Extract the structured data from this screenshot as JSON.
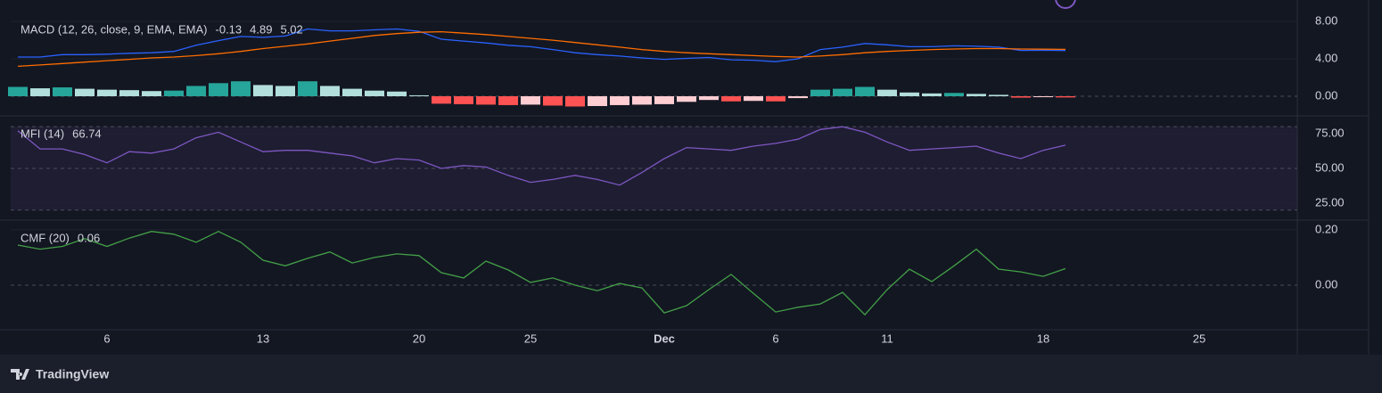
{
  "chart_data": [
    {
      "type": "macd",
      "title": "MACD (12, 26, close, 9, EMA, EMA)",
      "x": [
        2,
        3,
        4,
        5,
        6,
        7,
        8,
        9,
        10,
        11,
        12,
        13,
        14,
        15,
        16,
        17,
        18,
        19,
        20,
        21,
        22,
        23,
        24,
        25,
        26,
        27,
        28,
        29,
        30,
        31,
        32,
        33,
        34,
        35,
        36,
        37,
        38,
        39,
        40,
        41,
        42,
        43,
        44,
        45,
        46,
        47,
        48,
        49
      ],
      "xlim": [
        1.68,
        59.4
      ],
      "ylim": [
        -2.1,
        10.3
      ],
      "yticks": [
        {
          "value": 8,
          "label": "8.00"
        },
        {
          "value": 4,
          "label": "4.00"
        },
        {
          "value": 0,
          "label": "0.00"
        }
      ],
      "dashed_levels": [
        0
      ],
      "series": [
        {
          "style": "histogram",
          "colors": [
            "#26a69a",
            "#b2dfdb",
            "#ffcdd2",
            "#ff5252"
          ],
          "values": [
            1.0,
            0.85,
            0.95,
            0.8,
            0.7,
            0.65,
            0.55,
            0.6,
            1.1,
            1.4,
            1.6,
            1.2,
            1.1,
            1.6,
            1.1,
            0.8,
            0.6,
            0.5,
            0.1,
            -0.8,
            -0.85,
            -0.9,
            -0.95,
            -0.9,
            -1.0,
            -1.1,
            -1.05,
            -0.95,
            -0.9,
            -0.85,
            -0.6,
            -0.4,
            -0.55,
            -0.5,
            -0.55,
            -0.2,
            0.7,
            0.8,
            1.0,
            0.7,
            0.4,
            0.3,
            0.35,
            0.25,
            0.15,
            -0.15,
            -0.1,
            -0.13
          ]
        },
        {
          "style": "line",
          "color": "#2962ff",
          "values": [
            4.2,
            4.2,
            4.45,
            4.45,
            4.5,
            4.6,
            4.65,
            4.8,
            5.45,
            5.95,
            6.4,
            6.3,
            6.45,
            7.2,
            7.0,
            7.0,
            7.1,
            7.2,
            6.95,
            6.1,
            5.9,
            5.7,
            5.45,
            5.3,
            5.0,
            4.65,
            4.45,
            4.3,
            4.1,
            3.95,
            4.05,
            4.15,
            3.9,
            3.85,
            3.7,
            4.0,
            5.0,
            5.25,
            5.65,
            5.5,
            5.3,
            5.3,
            5.4,
            5.35,
            5.25,
            4.9,
            4.93,
            4.89
          ]
        },
        {
          "style": "line",
          "color": "#ff6d00",
          "values": [
            3.2,
            3.35,
            3.5,
            3.65,
            3.8,
            3.95,
            4.1,
            4.2,
            4.35,
            4.55,
            4.8,
            5.1,
            5.35,
            5.6,
            5.9,
            6.2,
            6.5,
            6.7,
            6.85,
            6.9,
            6.75,
            6.6,
            6.4,
            6.2,
            6.0,
            5.75,
            5.5,
            5.25,
            5.0,
            4.8,
            4.65,
            4.55,
            4.45,
            4.35,
            4.25,
            4.2,
            4.3,
            4.45,
            4.65,
            4.8,
            4.9,
            5.0,
            5.05,
            5.1,
            5.1,
            5.05,
            5.03,
            5.02
          ]
        }
      ]
    },
    {
      "type": "line",
      "title": "MFI (14)",
      "x": [
        2,
        3,
        4,
        5,
        6,
        7,
        8,
        9,
        10,
        11,
        12,
        13,
        14,
        15,
        16,
        17,
        18,
        19,
        20,
        21,
        22,
        23,
        24,
        25,
        26,
        27,
        28,
        29,
        30,
        31,
        32,
        33,
        34,
        35,
        36,
        37,
        38,
        39,
        40,
        41,
        42,
        43,
        44,
        45,
        46,
        47,
        48,
        49
      ],
      "xlim": [
        1.68,
        59.4
      ],
      "ylim": [
        12.8,
        87.8
      ],
      "yticks": [
        {
          "value": 75,
          "label": "75.00"
        },
        {
          "value": 50,
          "label": "50.00"
        },
        {
          "value": 25,
          "label": "25.00"
        }
      ],
      "bands": [
        20,
        80
      ],
      "band_color": "#7e57c2",
      "dashed_levels": [
        20,
        50,
        80
      ],
      "series": [
        {
          "style": "line",
          "color": "#7e57c2",
          "values": [
            77,
            64,
            64,
            60,
            54,
            62,
            61,
            64,
            72,
            76,
            69,
            62,
            63,
            63,
            61,
            59,
            54,
            57,
            56,
            50,
            52,
            51,
            45,
            40,
            42,
            45,
            42,
            38,
            47,
            57,
            65,
            64,
            63,
            66,
            68,
            71,
            78,
            80,
            76,
            69,
            63,
            64,
            65,
            66,
            61,
            57,
            63,
            66.74
          ]
        }
      ]
    },
    {
      "type": "line",
      "title": "CMF (20)",
      "x": [
        2,
        3,
        4,
        5,
        6,
        7,
        8,
        9,
        10,
        11,
        12,
        13,
        14,
        15,
        16,
        17,
        18,
        19,
        20,
        21,
        22,
        23,
        24,
        25,
        26,
        27,
        28,
        29,
        30,
        31,
        32,
        33,
        34,
        35,
        36,
        37,
        38,
        39,
        40,
        41,
        42,
        43,
        44,
        45,
        46,
        47,
        48,
        49
      ],
      "xlim": [
        1.68,
        59.4
      ],
      "xticks": [
        6,
        13,
        20,
        25,
        {
          "value": 31,
          "label": "Dec"
        },
        {
          "value": 36,
          "label": "6"
        },
        {
          "value": 41,
          "label": "11"
        },
        {
          "value": 48,
          "label": "18"
        },
        {
          "value": 55,
          "label": "25"
        }
      ],
      "ylim": [
        -0.161,
        0.235
      ],
      "yticks": [
        {
          "value": 0.2,
          "label": "0.20"
        },
        {
          "value": 0,
          "label": "0.00"
        }
      ],
      "dashed_levels": [
        0
      ],
      "series": [
        {
          "style": "line",
          "color": "#43a047",
          "values": [
            0.145,
            0.13,
            0.14,
            0.168,
            0.14,
            0.17,
            0.194,
            0.184,
            0.155,
            0.194,
            0.155,
            0.09,
            0.07,
            0.097,
            0.12,
            0.08,
            0.1,
            0.113,
            0.107,
            0.045,
            0.026,
            0.087,
            0.055,
            0.01,
            0.026,
            0,
            -0.02,
            0.006,
            -0.01,
            -0.1,
            -0.074,
            -0.016,
            0.039,
            -0.03,
            -0.097,
            -0.08,
            -0.068,
            -0.026,
            -0.107,
            -0.016,
            0.058,
            0.013,
            0.07,
            0.13,
            0.058,
            0.048,
            0.032,
            0.06
          ]
        }
      ]
    }
  ],
  "footer": {
    "brand": "TradingView"
  }
}
